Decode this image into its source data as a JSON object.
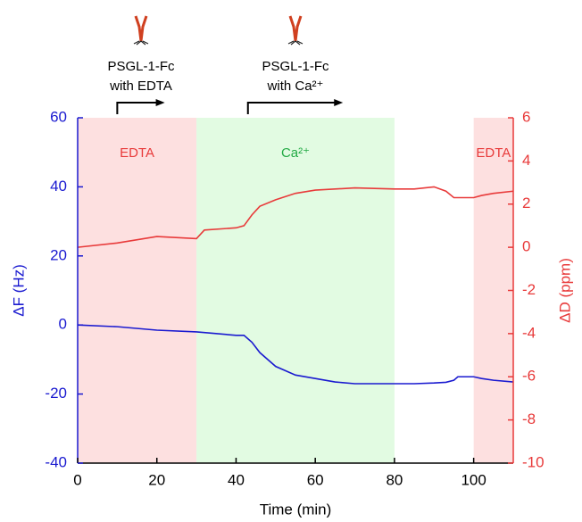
{
  "chart_data": {
    "type": "line",
    "x_label": "Time (min)",
    "y_label": "ΔF (Hz)",
    "y2_label": "ΔD (ppm)",
    "xlim": [
      0,
      110
    ],
    "xticks": [
      0,
      20,
      40,
      60,
      80,
      100
    ],
    "ylim": [
      -40,
      60
    ],
    "yticks": [
      -40,
      -20,
      0,
      20,
      40,
      60
    ],
    "y2lim": [
      -10,
      6
    ],
    "y2ticks": [
      -10,
      -8,
      -6,
      -4,
      -2,
      0,
      2,
      4,
      6
    ],
    "x": [
      0,
      10,
      20,
      30,
      32,
      40,
      42,
      44,
      46,
      50,
      55,
      60,
      65,
      70,
      80,
      85,
      90,
      93,
      95,
      96,
      100,
      102,
      105,
      110
    ],
    "series": [
      {
        "name": "ΔF",
        "color": "#1a1ad0",
        "axis": "y",
        "values": [
          0,
          -0.5,
          -1.5,
          -2,
          -2.2,
          -3,
          -3,
          -5,
          -8,
          -12,
          -14.5,
          -15.5,
          -16.5,
          -17,
          -17,
          -17,
          -16.8,
          -16.6,
          -16,
          -15,
          -15,
          -15.5,
          -16,
          -16.5
        ]
      },
      {
        "name": "ΔD",
        "color": "#e83a3a",
        "axis": "y2",
        "values": [
          0,
          0.2,
          0.5,
          0.4,
          0.8,
          0.9,
          1,
          1.5,
          1.9,
          2.2,
          2.5,
          2.65,
          2.7,
          2.75,
          2.7,
          2.7,
          2.8,
          2.6,
          2.3,
          2.3,
          2.3,
          2.4,
          2.5,
          2.6
        ]
      }
    ],
    "regions": [
      {
        "start": 0,
        "end": 30,
        "label": "EDTA",
        "color": "#fde0e0",
        "label_color": "#e83a3a"
      },
      {
        "start": 30,
        "end": 80,
        "label": "Ca²⁺",
        "color": "#e2fbe2",
        "label_color": "#22aa44"
      },
      {
        "start": 100,
        "end": 110,
        "label": "EDTA",
        "color": "#fde0e0",
        "label_color": "#e83a3a"
      }
    ],
    "annotations": [
      {
        "x": 10,
        "x_end": 22,
        "lines": [
          "PSGL-1-Fc",
          "with EDTA"
        ]
      },
      {
        "x": 43,
        "x_end": 67,
        "lines": [
          "PSGL-1-Fc",
          "with Ca²⁺"
        ]
      }
    ]
  }
}
